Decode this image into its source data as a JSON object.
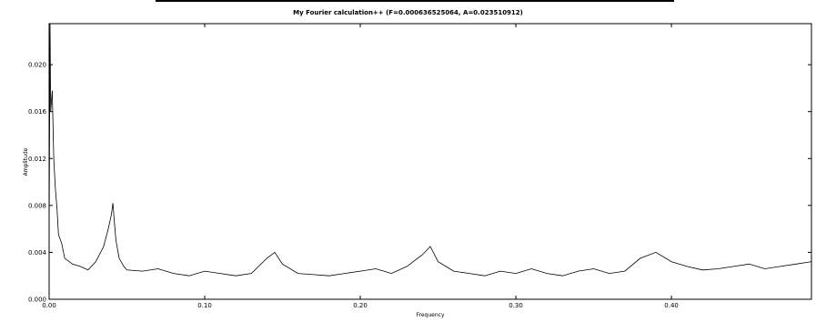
{
  "chart_data": {
    "type": "line",
    "title": "My Fourier calculation++ (F=0.000636525064, A=0.023510912)",
    "xlabel": "Frequency",
    "ylabel": "Amplitude",
    "xlim": [
      0,
      0.49
    ],
    "ylim": [
      0,
      0.0235
    ],
    "x_ticks": [
      0.0,
      0.1,
      0.2,
      0.3,
      0.4
    ],
    "x_tick_labels": [
      "0.00",
      "0.10",
      "0.20",
      "0.30",
      "0.40"
    ],
    "y_ticks": [
      0.0,
      0.004,
      0.008,
      0.012,
      0.016,
      0.02
    ],
    "y_tick_labels": [
      "0.000",
      "0.004",
      "0.008",
      "0.012",
      "0.016",
      "0.020"
    ],
    "grid": false,
    "line_color": "#000000",
    "series": [
      {
        "x": [
          0.0,
          0.0006,
          0.001,
          0.002,
          0.003,
          0.004,
          0.005,
          0.006,
          0.008,
          0.01,
          0.015,
          0.02,
          0.025,
          0.03,
          0.035,
          0.038,
          0.04,
          0.041,
          0.042,
          0.043,
          0.045,
          0.048,
          0.05,
          0.06,
          0.07,
          0.08,
          0.09,
          0.1,
          0.11,
          0.12,
          0.13,
          0.14,
          0.145,
          0.15,
          0.16,
          0.17,
          0.18,
          0.19,
          0.2,
          0.21,
          0.22,
          0.23,
          0.24,
          0.245,
          0.25,
          0.26,
          0.27,
          0.28,
          0.29,
          0.3,
          0.31,
          0.32,
          0.33,
          0.34,
          0.35,
          0.36,
          0.37,
          0.38,
          0.39,
          0.4,
          0.41,
          0.42,
          0.43,
          0.44,
          0.45,
          0.46,
          0.47,
          0.48,
          0.49
        ],
        "values": [
          0.0052,
          0.0235,
          0.016,
          0.0178,
          0.012,
          0.0095,
          0.0078,
          0.0055,
          0.0048,
          0.0035,
          0.003,
          0.0028,
          0.0025,
          0.0032,
          0.0045,
          0.006,
          0.0072,
          0.0082,
          0.0065,
          0.005,
          0.0035,
          0.0028,
          0.0025,
          0.0024,
          0.0026,
          0.0022,
          0.002,
          0.0024,
          0.0022,
          0.002,
          0.0022,
          0.0035,
          0.004,
          0.003,
          0.0022,
          0.0021,
          0.002,
          0.0022,
          0.0024,
          0.0026,
          0.0022,
          0.0028,
          0.0038,
          0.0045,
          0.0032,
          0.0024,
          0.0022,
          0.002,
          0.0024,
          0.0022,
          0.0026,
          0.0022,
          0.002,
          0.0024,
          0.0026,
          0.0022,
          0.0024,
          0.0035,
          0.004,
          0.0032,
          0.0028,
          0.0025,
          0.0026,
          0.0028,
          0.003,
          0.0026,
          0.0028,
          0.003,
          0.0032
        ]
      }
    ]
  }
}
